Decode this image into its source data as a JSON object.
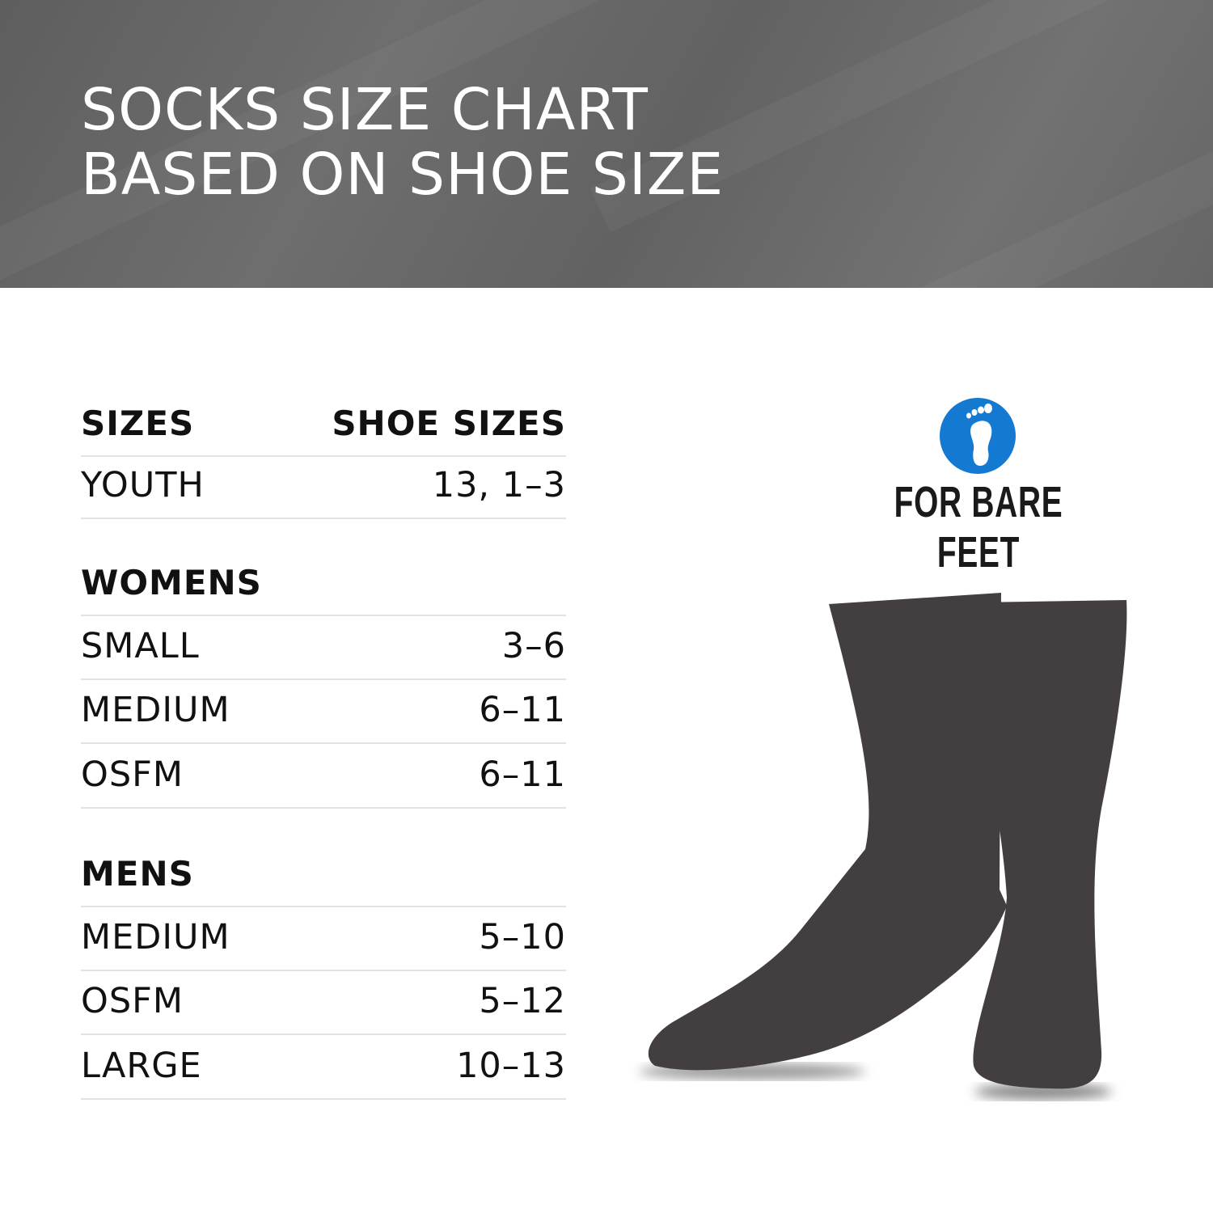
{
  "header": {
    "title_line1": "SOCKS SIZE CHART",
    "title_line2": "BASED ON SHOE SIZE"
  },
  "table": {
    "col_sizes": "SIZES",
    "col_shoe_sizes": "SHOE SIZES",
    "youth": {
      "label": "YOUTH",
      "value": "13, 1–3"
    },
    "womens": {
      "heading": "WOMENS",
      "rows": [
        {
          "label": "SMALL",
          "value": "3–6"
        },
        {
          "label": "MEDIUM",
          "value": "6–11"
        },
        {
          "label": "OSFM",
          "value": "6–11"
        }
      ]
    },
    "mens": {
      "heading": "MENS",
      "rows": [
        {
          "label": "MEDIUM",
          "value": "5–10"
        },
        {
          "label": "OSFM",
          "value": "5–12"
        },
        {
          "label": "LARGE",
          "value": "10–13"
        }
      ]
    }
  },
  "badge": {
    "text": "FOR BARE FEET",
    "icon": "footprint-icon",
    "color": "#1479d1"
  },
  "colors": {
    "banner": "#666666",
    "sock": "#433f41"
  }
}
